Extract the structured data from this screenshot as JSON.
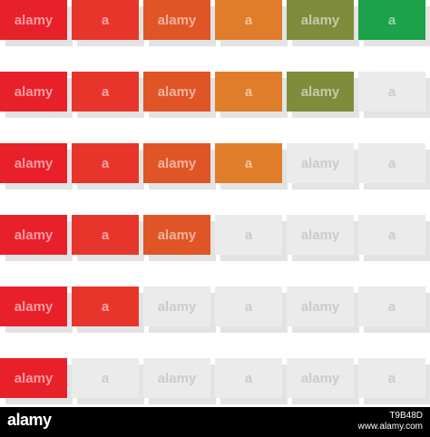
{
  "colors": {
    "off": "#ebebeb",
    "shadow": "#e3e3e3",
    "footer": "#000000"
  },
  "levels": [
    {
      "level": 6,
      "segments": [
        "#e8202a",
        "#e8352b",
        "#e05526",
        "#e07d2a",
        "#7e8c3c",
        "#1ba24a"
      ]
    },
    {
      "level": 5,
      "segments": [
        "#e8202a",
        "#e8352b",
        "#e05526",
        "#e07d2a",
        "#7e8c3c"
      ]
    },
    {
      "level": 4,
      "segments": [
        "#e8202a",
        "#e8352b",
        "#e05526",
        "#e07d2a"
      ]
    },
    {
      "level": 3,
      "segments": [
        "#e8202a",
        "#e8352b",
        "#e05526"
      ]
    },
    {
      "level": 2,
      "segments": [
        "#e8202a",
        "#e8352b"
      ]
    },
    {
      "level": 1,
      "segments": [
        "#e8202a"
      ]
    }
  ],
  "total_segments": 6,
  "watermark": "alamy",
  "footer": {
    "logo": "alamy",
    "image_id": "T9B48D",
    "site": "www.alamy.com"
  }
}
